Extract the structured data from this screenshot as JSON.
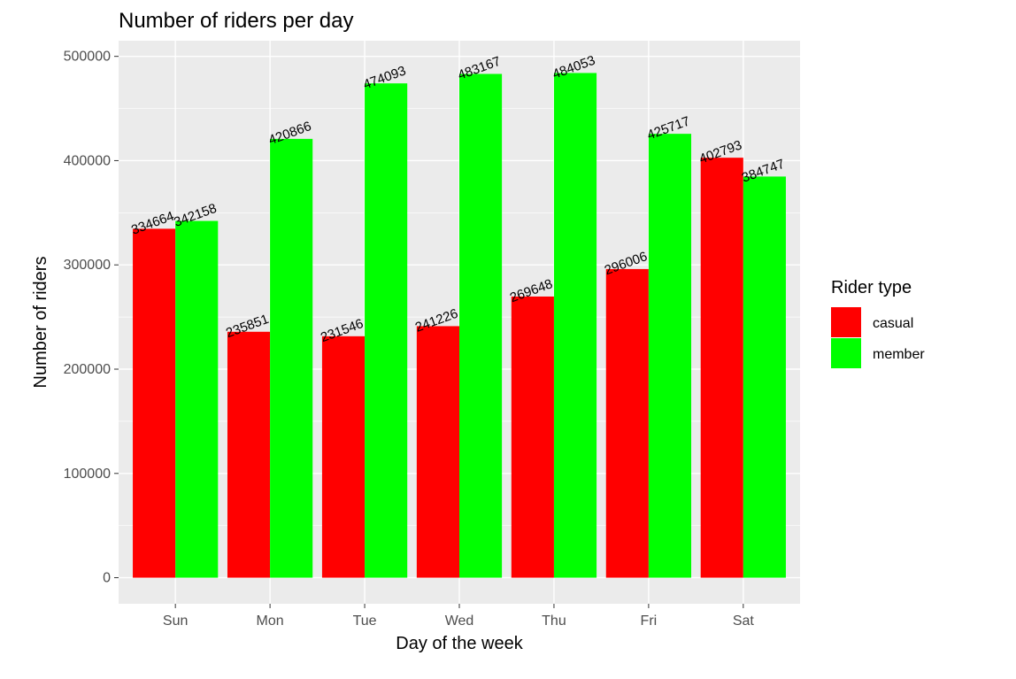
{
  "chart_data": {
    "type": "bar",
    "title": "Number of riders per day",
    "xlabel": "Day of the week",
    "ylabel": "Number of riders",
    "categories": [
      "Sun",
      "Mon",
      "Tue",
      "Wed",
      "Thu",
      "Fri",
      "Sat"
    ],
    "series": [
      {
        "name": "casual",
        "color": "#ff0000",
        "values": [
          334664,
          235851,
          231546,
          241226,
          269648,
          296006,
          402793
        ]
      },
      {
        "name": "member",
        "color": "#00ff00",
        "values": [
          342158,
          420866,
          474093,
          483167,
          484053,
          425717,
          384747
        ]
      }
    ],
    "y_ticks": [
      0,
      100000,
      200000,
      300000,
      400000,
      500000
    ],
    "ylim": [
      -25000,
      515000
    ],
    "grid": true,
    "legend": {
      "title": "Rider type",
      "position": "right"
    }
  }
}
